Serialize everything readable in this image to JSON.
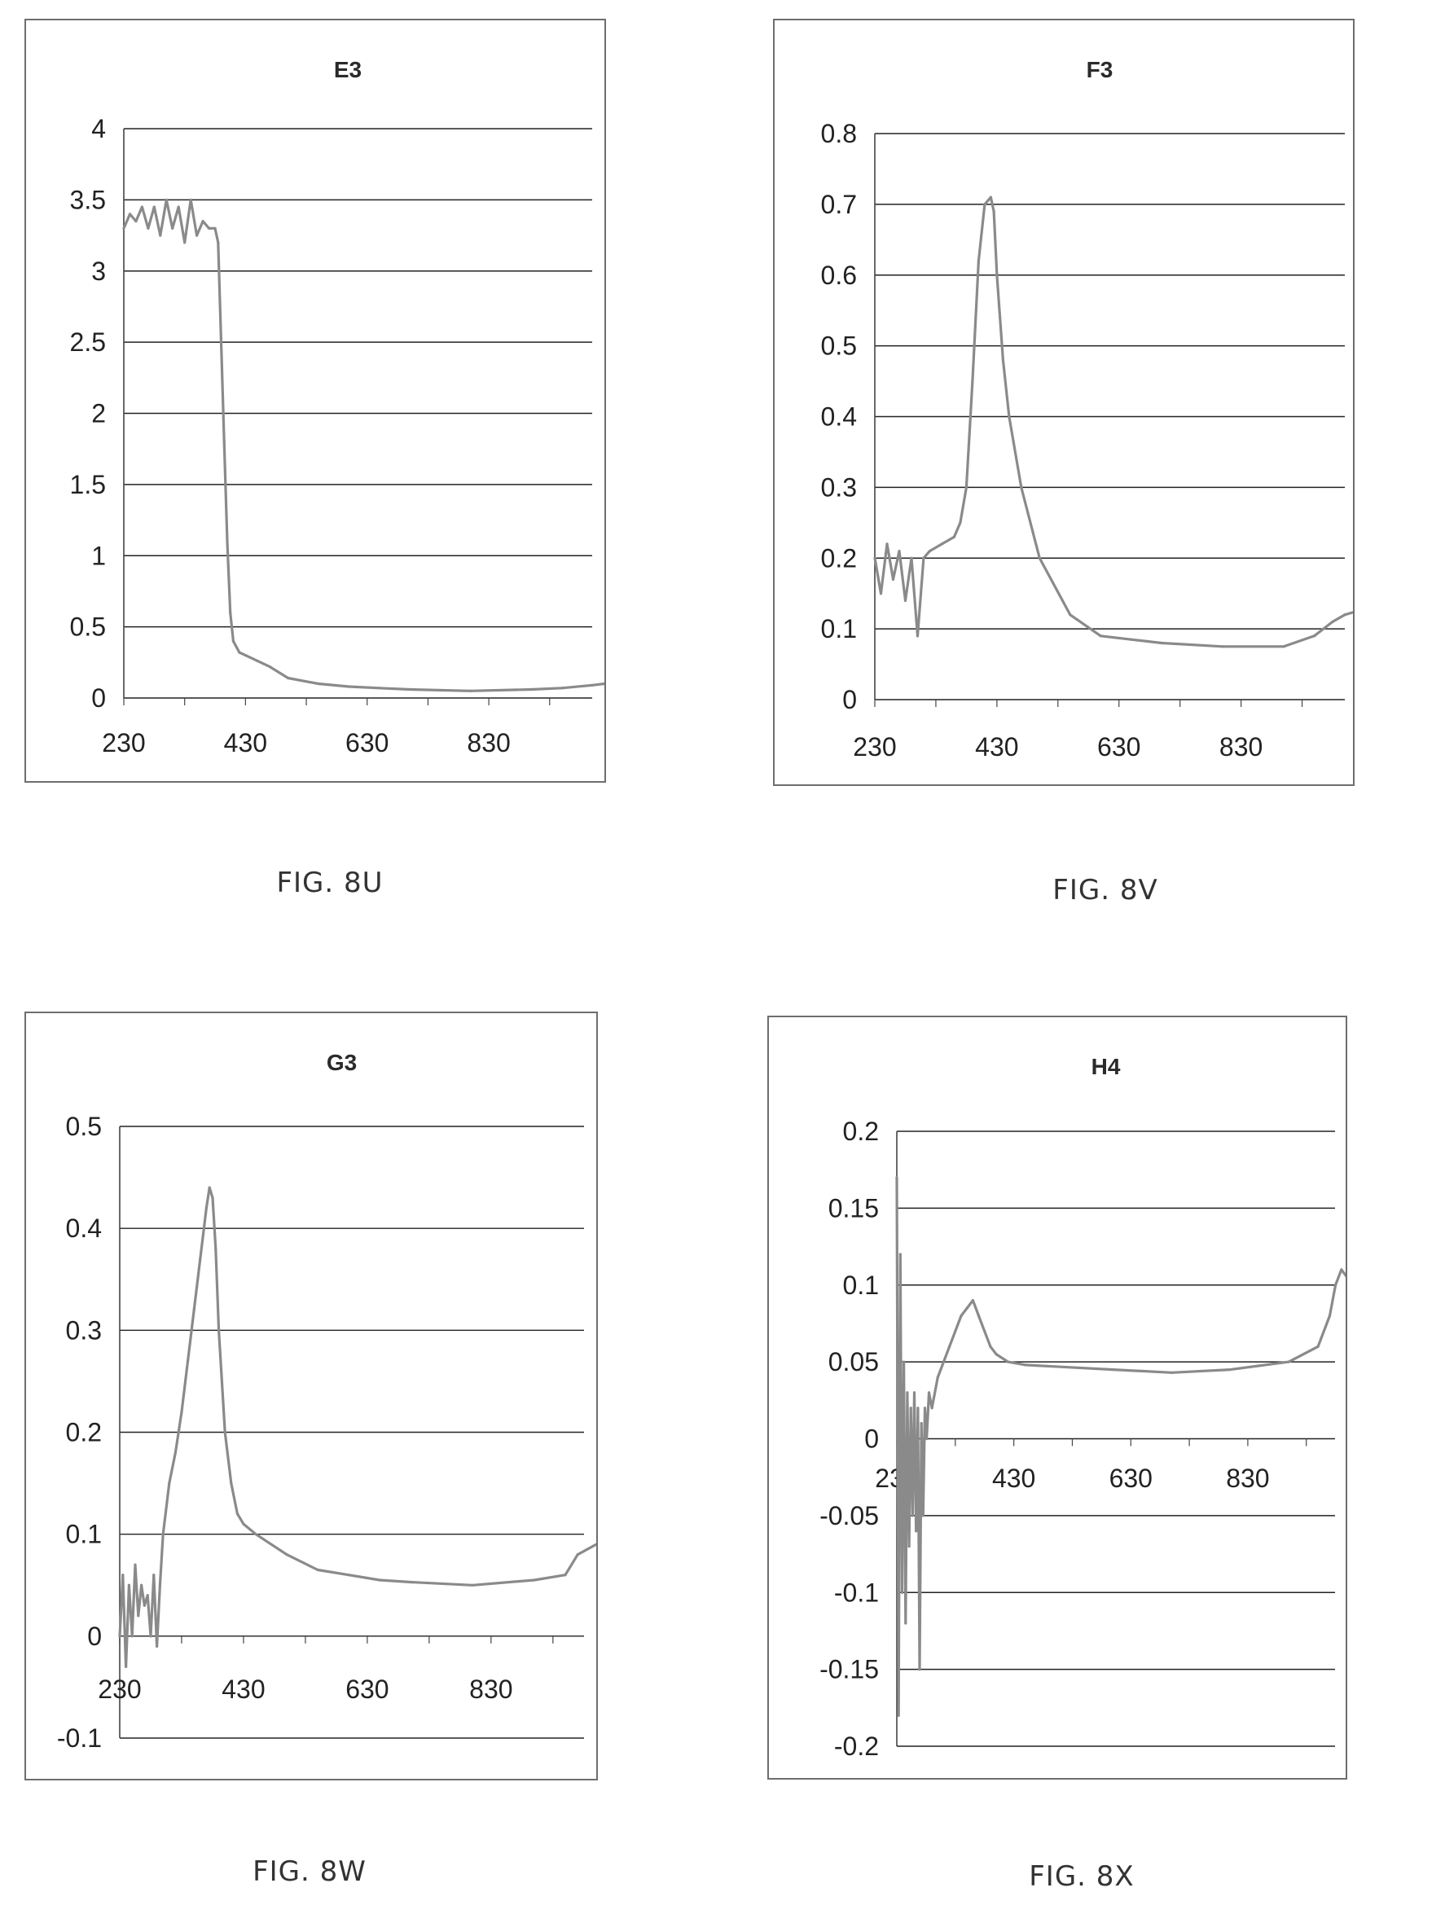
{
  "colors": {
    "grid": "#222222",
    "line": "#8a8a8a",
    "axis": "#444444",
    "text": "#222222"
  },
  "figures": [
    {
      "caption": "FIG. 8U",
      "chart_data": {
        "type": "line",
        "title": "E3",
        "xlabel": "",
        "ylabel": "",
        "xlim": [
          230,
          1020
        ],
        "ylim": [
          0,
          4
        ],
        "x_ticks": [
          "230",
          "430",
          "630",
          "830"
        ],
        "y_ticks": [
          "0",
          "0.5",
          "1",
          "1.5",
          "2",
          "2.5",
          "3",
          "3.5",
          "4"
        ],
        "grid": "horizontal",
        "series": [
          {
            "x": [
              230,
              240,
              250,
              260,
              270,
              280,
              290,
              300,
              310,
              320,
              330,
              340,
              350,
              360,
              370,
              380,
              385,
              390,
              395,
              400,
              405,
              410,
              420,
              430,
              450,
              470,
              500,
              550,
              600,
              650,
              700,
              800,
              900,
              950,
              1000,
              1020
            ],
            "y": [
              3.3,
              3.4,
              3.35,
              3.45,
              3.3,
              3.45,
              3.25,
              3.5,
              3.3,
              3.45,
              3.2,
              3.5,
              3.25,
              3.35,
              3.3,
              3.3,
              3.2,
              2.5,
              1.8,
              1.1,
              0.6,
              0.4,
              0.32,
              0.3,
              0.26,
              0.22,
              0.14,
              0.1,
              0.08,
              0.07,
              0.06,
              0.05,
              0.06,
              0.07,
              0.09,
              0.1
            ]
          }
        ]
      }
    },
    {
      "caption": "FIG. 8V",
      "chart_data": {
        "type": "line",
        "title": "F3",
        "xlabel": "",
        "ylabel": "",
        "xlim": [
          230,
          1020
        ],
        "ylim": [
          0,
          0.8
        ],
        "x_ticks": [
          "230",
          "430",
          "630",
          "830"
        ],
        "y_ticks": [
          "0",
          "0.1",
          "0.2",
          "0.3",
          "0.4",
          "0.5",
          "0.6",
          "0.7",
          "0.8"
        ],
        "grid": "horizontal",
        "series": [
          {
            "x": [
              230,
              240,
              250,
              260,
              270,
              280,
              290,
              300,
              310,
              320,
              340,
              360,
              370,
              380,
              390,
              400,
              410,
              420,
              425,
              430,
              440,
              450,
              470,
              500,
              550,
              600,
              650,
              700,
              800,
              900,
              950,
              980,
              1000,
              1020
            ],
            "y": [
              0.2,
              0.15,
              0.22,
              0.17,
              0.21,
              0.14,
              0.2,
              0.09,
              0.2,
              0.21,
              0.22,
              0.23,
              0.25,
              0.3,
              0.45,
              0.62,
              0.7,
              0.71,
              0.69,
              0.6,
              0.48,
              0.4,
              0.3,
              0.2,
              0.12,
              0.09,
              0.085,
              0.08,
              0.075,
              0.075,
              0.09,
              0.11,
              0.12,
              0.125
            ]
          }
        ]
      }
    },
    {
      "caption": "FIG. 8W",
      "chart_data": {
        "type": "line",
        "title": "G3",
        "xlabel": "",
        "ylabel": "",
        "xlim": [
          230,
          1000
        ],
        "ylim": [
          -0.1,
          0.5
        ],
        "x_ticks": [
          "230",
          "430",
          "630",
          "830"
        ],
        "y_ticks": [
          "-0.1",
          "0",
          "0.1",
          "0.2",
          "0.3",
          "0.4",
          "0.5"
        ],
        "grid": "horizontal",
        "series": [
          {
            "x": [
              230,
              235,
              240,
              245,
              250,
              255,
              260,
              265,
              270,
              275,
              280,
              285,
              290,
              295,
              300,
              310,
              320,
              330,
              340,
              350,
              360,
              370,
              375,
              380,
              385,
              390,
              400,
              410,
              420,
              430,
              450,
              500,
              550,
              600,
              650,
              700,
              800,
              900,
              950,
              970,
              1000
            ],
            "y": [
              0.0,
              0.06,
              -0.03,
              0.05,
              0.0,
              0.07,
              0.02,
              0.05,
              0.03,
              0.04,
              0.0,
              0.06,
              -0.01,
              0.05,
              0.1,
              0.15,
              0.18,
              0.22,
              0.27,
              0.32,
              0.37,
              0.42,
              0.44,
              0.43,
              0.38,
              0.3,
              0.2,
              0.15,
              0.12,
              0.11,
              0.1,
              0.08,
              0.065,
              0.06,
              0.055,
              0.053,
              0.05,
              0.055,
              0.06,
              0.08,
              0.09
            ]
          }
        ]
      }
    },
    {
      "caption": "FIG. 8X",
      "chart_data": {
        "type": "line",
        "title": "H4",
        "xlabel": "",
        "ylabel": "",
        "xlim": [
          230,
          1000
        ],
        "ylim": [
          -0.2,
          0.2
        ],
        "x_ticks": [
          "230",
          "430",
          "630",
          "830"
        ],
        "y_ticks": [
          "-0.2",
          "-0.15",
          "-0.1",
          "-0.05",
          "0",
          "0.05",
          "0.1",
          "0.15",
          "0.2"
        ],
        "grid": "horizontal",
        "series": [
          {
            "x": [
              230,
              233,
              236,
              239,
              242,
              245,
              248,
              251,
              254,
              257,
              260,
              263,
              266,
              269,
              272,
              275,
              278,
              281,
              285,
              290,
              300,
              310,
              320,
              330,
              340,
              350,
              360,
              370,
              380,
              390,
              400,
              420,
              450,
              500,
              600,
              700,
              800,
              900,
              950,
              970,
              980,
              990,
              1000
            ],
            "y": [
              0.17,
              -0.18,
              0.12,
              -0.1,
              0.05,
              -0.12,
              0.03,
              -0.07,
              0.02,
              -0.05,
              0.03,
              -0.06,
              0.02,
              -0.15,
              0.01,
              -0.05,
              0.02,
              0.0,
              0.03,
              0.02,
              0.04,
              0.05,
              0.06,
              0.07,
              0.08,
              0.085,
              0.09,
              0.08,
              0.07,
              0.06,
              0.055,
              0.05,
              0.048,
              0.047,
              0.045,
              0.043,
              0.045,
              0.05,
              0.06,
              0.08,
              0.1,
              0.11,
              0.105
            ]
          }
        ]
      }
    }
  ]
}
